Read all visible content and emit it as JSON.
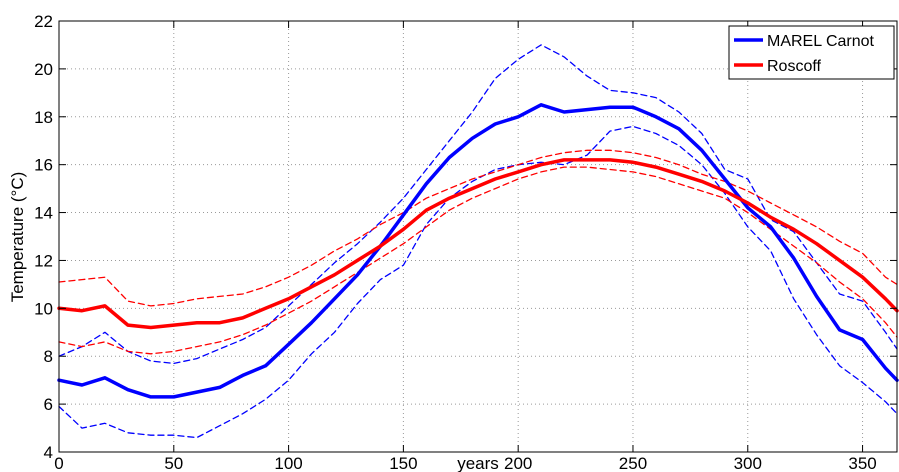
{
  "chart_data": {
    "type": "line",
    "title": "",
    "xlabel": "years",
    "ylabel": "Temperature (°C)",
    "xlim": [
      0,
      365
    ],
    "ylim": [
      4,
      22
    ],
    "xticks": [
      0,
      50,
      100,
      150,
      200,
      250,
      300,
      350
    ],
    "yticks": [
      4,
      6,
      8,
      10,
      12,
      14,
      16,
      18,
      20,
      22
    ],
    "xtick_labels": [
      "0",
      "50",
      "100",
      "150",
      "200",
      "250",
      "300",
      "350"
    ],
    "ytick_labels": [
      "4",
      "6",
      "8",
      "10",
      "12",
      "14",
      "16",
      "18",
      "20",
      "22"
    ],
    "grid": true,
    "legend_position": "top-right",
    "x": [
      0,
      10,
      20,
      30,
      40,
      50,
      60,
      70,
      80,
      90,
      100,
      110,
      120,
      130,
      140,
      150,
      160,
      170,
      180,
      190,
      200,
      210,
      220,
      230,
      240,
      250,
      260,
      270,
      280,
      290,
      300,
      310,
      320,
      330,
      340,
      350,
      360,
      365
    ],
    "series": [
      {
        "name": "MAREL Carnot",
        "legend": true,
        "color": "#0000ff",
        "style": "solid",
        "values": [
          7.0,
          6.8,
          7.1,
          6.6,
          6.3,
          6.3,
          6.5,
          6.7,
          7.2,
          7.6,
          8.5,
          9.4,
          10.4,
          11.4,
          12.6,
          13.9,
          15.2,
          16.3,
          17.1,
          17.7,
          18.0,
          18.5,
          18.2,
          18.3,
          18.4,
          18.4,
          18.0,
          17.5,
          16.6,
          15.4,
          14.2,
          13.4,
          12.1,
          10.5,
          9.1,
          8.7,
          7.5,
          7.0
        ]
      },
      {
        "name": "Roscoff",
        "legend": true,
        "color": "#ff0000",
        "style": "solid",
        "values": [
          10.0,
          9.9,
          10.1,
          9.3,
          9.2,
          9.3,
          9.4,
          9.4,
          9.6,
          10.0,
          10.4,
          10.9,
          11.4,
          12.0,
          12.6,
          13.3,
          14.1,
          14.6,
          15.0,
          15.4,
          15.7,
          16.0,
          16.2,
          16.2,
          16.2,
          16.1,
          15.9,
          15.6,
          15.3,
          14.9,
          14.4,
          13.8,
          13.3,
          12.7,
          12.0,
          11.3,
          10.4,
          9.9
        ]
      },
      {
        "name": "MAREL Carnot upper",
        "legend": false,
        "color": "#0000ff",
        "style": "dashed",
        "values": [
          8.0,
          8.4,
          9.0,
          8.2,
          7.8,
          7.7,
          7.9,
          8.3,
          8.7,
          9.2,
          10.1,
          11.0,
          11.9,
          12.7,
          13.6,
          14.6,
          15.8,
          17.0,
          18.2,
          19.6,
          20.4,
          21.0,
          20.5,
          19.7,
          19.1,
          19.0,
          18.8,
          18.2,
          17.3,
          15.8,
          15.4,
          13.7,
          13.2,
          11.9,
          10.6,
          10.3,
          9.0,
          8.3
        ]
      },
      {
        "name": "MAREL Carnot lower",
        "legend": false,
        "color": "#0000ff",
        "style": "dashed",
        "values": [
          5.9,
          5.0,
          5.2,
          4.8,
          4.7,
          4.7,
          4.6,
          5.1,
          5.6,
          6.2,
          7.0,
          8.1,
          9.0,
          10.2,
          11.2,
          11.8,
          13.5,
          14.6,
          15.3,
          15.8,
          16.0,
          16.1,
          16.0,
          16.4,
          17.4,
          17.6,
          17.3,
          16.8,
          16.0,
          14.8,
          13.4,
          12.4,
          10.4,
          8.9,
          7.6,
          6.9,
          6.1,
          5.6
        ]
      },
      {
        "name": "Roscoff upper",
        "legend": false,
        "color": "#ff0000",
        "style": "dashed",
        "values": [
          11.1,
          11.2,
          11.3,
          10.3,
          10.1,
          10.2,
          10.4,
          10.5,
          10.6,
          10.9,
          11.3,
          11.8,
          12.4,
          12.9,
          13.5,
          14.0,
          14.6,
          15.0,
          15.4,
          15.7,
          16.0,
          16.3,
          16.5,
          16.6,
          16.6,
          16.5,
          16.3,
          16.0,
          15.6,
          15.3,
          14.9,
          14.4,
          13.9,
          13.4,
          12.8,
          12.3,
          11.3,
          11.0
        ]
      },
      {
        "name": "Roscoff lower",
        "legend": false,
        "color": "#ff0000",
        "style": "dashed",
        "values": [
          8.6,
          8.4,
          8.6,
          8.2,
          8.1,
          8.2,
          8.4,
          8.6,
          8.9,
          9.3,
          9.8,
          10.3,
          10.9,
          11.5,
          12.1,
          12.7,
          13.4,
          14.1,
          14.6,
          15.0,
          15.4,
          15.7,
          15.9,
          15.9,
          15.8,
          15.7,
          15.5,
          15.2,
          14.9,
          14.6,
          14.0,
          13.3,
          12.6,
          11.9,
          11.1,
          10.4,
          9.4,
          8.8
        ]
      }
    ]
  }
}
